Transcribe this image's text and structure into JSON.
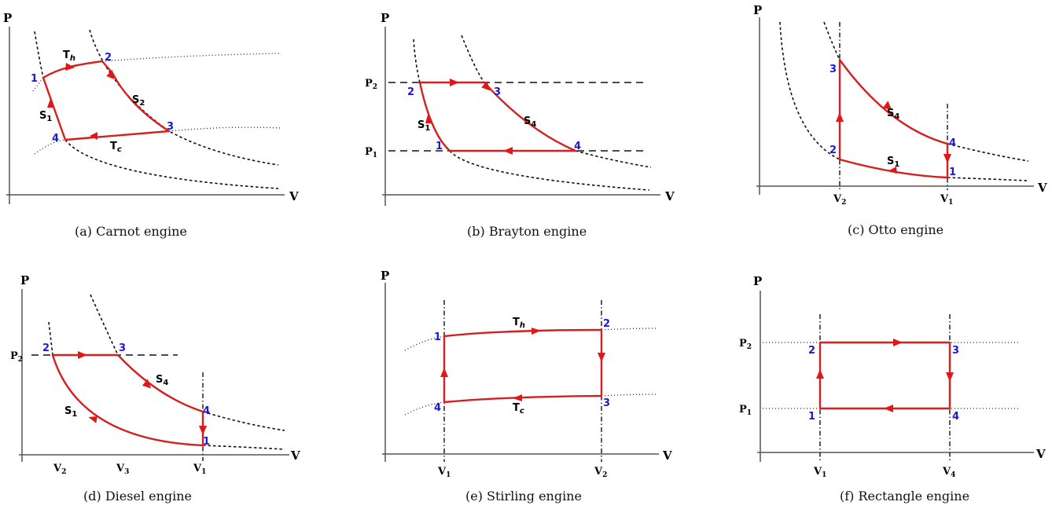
{
  "axis_labels": {
    "pressure": "P",
    "volume": "V"
  },
  "state_numbers": {
    "s1": "1",
    "s2": "2",
    "s3": "3",
    "s4": "4"
  },
  "symbols": {
    "P1": {
      "base": "P",
      "sub": "1"
    },
    "P2": {
      "base": "P",
      "sub": "2"
    },
    "V1": {
      "base": "V",
      "sub": "1"
    },
    "V2": {
      "base": "V",
      "sub": "2"
    },
    "V3": {
      "base": "V",
      "sub": "3"
    },
    "V4": {
      "base": "V",
      "sub": "4"
    },
    "Th": {
      "base": "T",
      "sub": "h"
    },
    "Tc": {
      "base": "T",
      "sub": "c"
    },
    "S1": {
      "base": "S",
      "sub": "1"
    },
    "S2": {
      "base": "S",
      "sub": "2"
    },
    "S4": {
      "base": "S",
      "sub": "4"
    }
  },
  "panels": [
    {
      "id": "carnot",
      "caption": "(a) Carnot engine"
    },
    {
      "id": "brayton",
      "caption": "(b) Brayton engine"
    },
    {
      "id": "otto",
      "caption": "(c) Otto engine"
    },
    {
      "id": "diesel",
      "caption": "(d) Diesel engine"
    },
    {
      "id": "stirling",
      "caption": "(e) Stirling engine"
    },
    {
      "id": "rectangle",
      "caption": "(f) Rectangle engine"
    }
  ],
  "colors": {
    "cycle": "#d42020",
    "state_number": "#1a1ad8",
    "guide": "#111111"
  }
}
